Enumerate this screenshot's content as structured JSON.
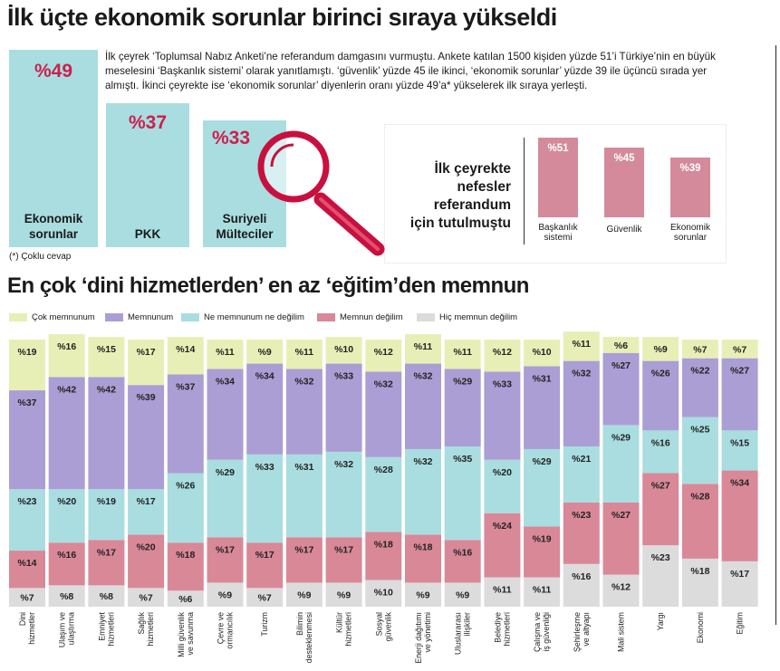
{
  "title": "İlk üçte ekonomik sorunlar birinci sıraya yükseldi",
  "intro": "İlk çeyrek ‘Toplumsal Nabız Anketi’ne referandum damgasını vurmuştu. Ankete katılan 1500 kişiden yüzde 51’i Türkiye’nin en büyük meselesini ‘Başkanlık sistemi’ olarak yanıtlamıştı. ‘güvenlik’ yüzde 45 ile ikinci, ‘ekonomik sorunlar’ yüzde 39 ile üçüncü sırada yer almıştı. İkinci çeyrekte ise ‘ekonomik sorunlar’ diyenlerin oranı yüzde 49’a* yükselerek ilk sıraya yerleşti.",
  "top3": [
    {
      "pct": "%49",
      "value": 49,
      "label": [
        "Ekonomik",
        "sorunlar"
      ]
    },
    {
      "pct": "%37",
      "value": 37,
      "label": [
        "PKK"
      ]
    },
    {
      "pct": "%33",
      "value": 33,
      "label": [
        "Suriyeli",
        "Mülteciler"
      ]
    }
  ],
  "footnote": "(*) Çoklu cevap",
  "referendum": {
    "title": [
      "İlk çeyrekte",
      "nefesler",
      "referandum",
      "için tutulmuştu"
    ],
    "bars": [
      {
        "pct": "%51",
        "value": 51,
        "label": [
          "Başkanlık",
          "sistemi"
        ]
      },
      {
        "pct": "%45",
        "value": 45,
        "label": [
          "Güvenlik"
        ]
      },
      {
        "pct": "%39",
        "value": 39,
        "label": [
          "Ekonomik",
          "sorunlar"
        ]
      }
    ]
  },
  "title2": "En çok ‘dini hizmetlerden’ en az ‘eğitim’den memnun",
  "colors": {
    "cok_memnunum": "#e8efb6",
    "memnunum": "#ab9ed4",
    "ne_memnunum": "#a9dde0",
    "memnun_degilim": "#d98898",
    "hic_memnun": "#dcdcdc",
    "accent_red": "#cc1f4e",
    "magnifier": "#c8103e"
  },
  "chart_data": {
    "type": "bar",
    "stacked": true,
    "orientation": "vertical",
    "categories": [
      [
        "Dini",
        "hizmetler"
      ],
      [
        "Ulaşım ve",
        "ulaştırma"
      ],
      [
        "Emniyet",
        "hizmetleri"
      ],
      [
        "Sağlık",
        "hizmetleri"
      ],
      [
        "Milli güvenlik",
        "ve savunma"
      ],
      [
        "Çevre ve",
        "ormancılık"
      ],
      [
        "Turizm"
      ],
      [
        "Bilimin",
        "desteklenmesi"
      ],
      [
        "Kültür",
        "hizmetleri"
      ],
      [
        "Sosyal",
        "güvenlik"
      ],
      [
        "Enerji dağıtımı",
        "ve yönetimi"
      ],
      [
        "Uluslararası",
        "ilişkiler"
      ],
      [
        "Belediye",
        "hizmetleri"
      ],
      [
        "Çalışma ve",
        "iş güvenliği"
      ],
      [
        "Şehirleşme",
        "ve altyapı"
      ],
      [
        "Mali sistem"
      ],
      [
        "Yargı"
      ],
      [
        "Ekonomi"
      ],
      [
        "Eğitim"
      ]
    ],
    "series": [
      {
        "name": "Çok memnunum",
        "color": "#e8efb6",
        "values": [
          19,
          16,
          15,
          17,
          14,
          11,
          9,
          11,
          10,
          12,
          11,
          11,
          12,
          10,
          11,
          6,
          9,
          7,
          7
        ]
      },
      {
        "name": "Memnunum",
        "color": "#ab9ed4",
        "values": [
          37,
          42,
          42,
          39,
          37,
          34,
          34,
          32,
          33,
          32,
          32,
          29,
          33,
          31,
          32,
          27,
          26,
          22,
          27
        ]
      },
      {
        "name": "Ne memnunum ne değilim",
        "color": "#a9dde0",
        "values": [
          23,
          20,
          19,
          17,
          26,
          29,
          33,
          31,
          32,
          28,
          32,
          35,
          20,
          29,
          21,
          29,
          16,
          25,
          15
        ]
      },
      {
        "name": "Memnun değilim",
        "color": "#d98898",
        "values": [
          14,
          16,
          17,
          20,
          18,
          17,
          17,
          17,
          17,
          18,
          18,
          16,
          24,
          19,
          23,
          27,
          27,
          28,
          34
        ]
      },
      {
        "name": "Hiç memnun değilim",
        "color": "#dcdcdc",
        "values": [
          7,
          8,
          8,
          7,
          6,
          9,
          7,
          9,
          9,
          10,
          9,
          9,
          11,
          11,
          16,
          12,
          23,
          18,
          17
        ]
      }
    ],
    "value_format": "%{v}",
    "legend_position": "top",
    "ylim": [
      0,
      100
    ]
  }
}
